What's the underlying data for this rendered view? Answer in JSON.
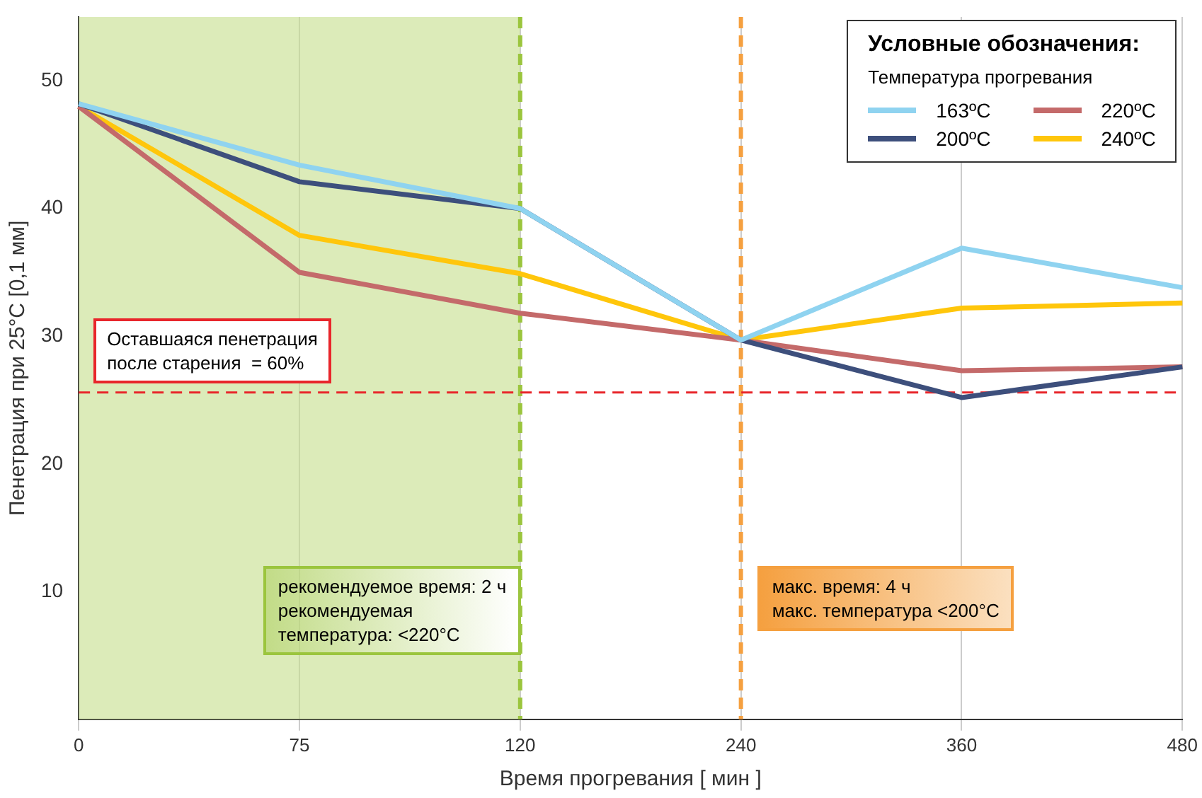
{
  "chart_data": {
    "type": "line",
    "xlabel": "Время прогревания [ мин ]",
    "ylabel": "Пенетрация при 25°C [0,1 мм]",
    "legend_title": "Условные обозначения:\nТемпература прогревания",
    "legend": "top right",
    "grid": "x",
    "marker": "none",
    "line_style": "solid",
    "categories": [
      "0",
      "75",
      "120",
      "240",
      "360",
      "480"
    ],
    "ylim": [
      0,
      55
    ],
    "yticks": [
      10,
      20,
      30,
      40,
      50
    ],
    "series": [
      {
        "name": "163ºC",
        "color": "#8fd3f0",
        "values": [
          48.2,
          43.4,
          40,
          29.7,
          36.9,
          33.8
        ]
      },
      {
        "name": "200ºC",
        "color": "#3d4f7c",
        "values": [
          48.2,
          42.1,
          40,
          29.7,
          25.2,
          27.6
        ]
      },
      {
        "name": "220ºC",
        "color": "#c46a6a",
        "values": [
          48,
          35,
          31.8,
          29.7,
          27.3,
          27.6
        ]
      },
      {
        "name": "240ºC",
        "color": "#ffc60b",
        "values": [
          48,
          37.9,
          34.9,
          29.7,
          32.2,
          32.6
        ]
      }
    ],
    "bands": [
      {
        "axis": "x",
        "from": "0",
        "to": "120",
        "color": "#c5de8a"
      }
    ],
    "ref_lines": [
      {
        "axis": "x",
        "value": "120",
        "color": "#9bc53d",
        "line_style": "dashed",
        "label": "рекомендуемое время: 2 ч\nрекомендуемая\nтемпература: <220°C"
      },
      {
        "axis": "x",
        "value": "240",
        "color": "#f5a040",
        "line_style": "dashed",
        "label": "макс. время: 4 ч\nмакс. температура <200°C"
      },
      {
        "axis": "y",
        "value": 25.6,
        "color": "#e8262b",
        "line_style": "dashed"
      }
    ],
    "annotations": [
      {
        "text": "Оставшаяся пенетрация\nпосле старения  = 60%",
        "y": 25.6
      }
    ]
  }
}
